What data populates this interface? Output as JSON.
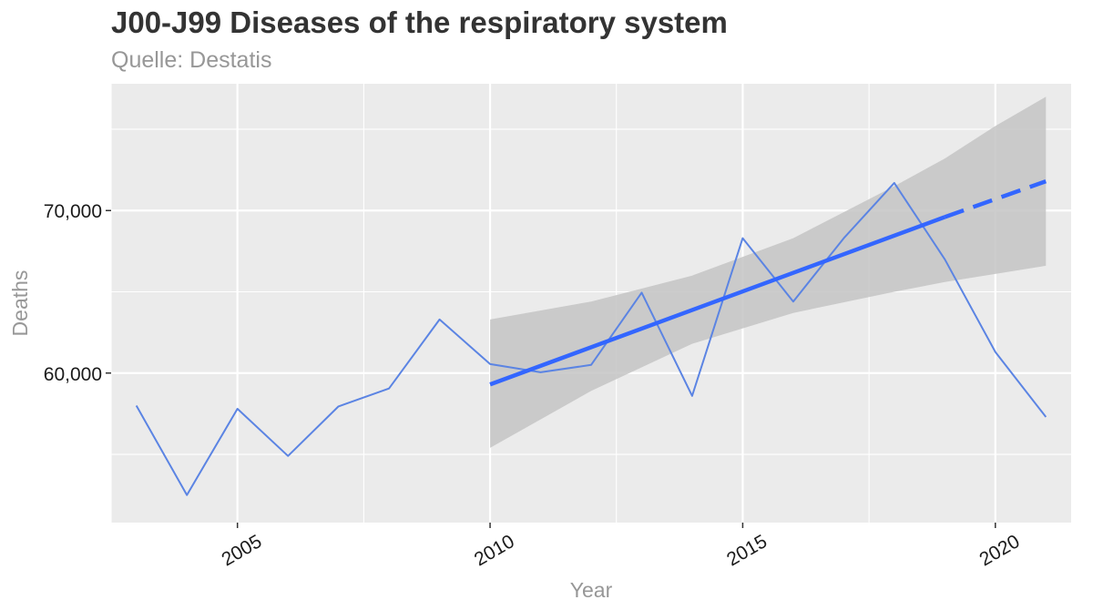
{
  "chart_data": {
    "type": "line",
    "title": "J00-J99 Diseases of the respiratory system",
    "subtitle": "Quelle: Destatis",
    "xlabel": "Year",
    "ylabel": "Deaths",
    "xlim": [
      2002.5,
      2021.5
    ],
    "ylim": [
      50800,
      77800
    ],
    "x_major_ticks": [
      2005,
      2010,
      2015,
      2020
    ],
    "x_minor_ticks": [
      2002.5,
      2007.5,
      2012.5,
      2017.5
    ],
    "y_major_ticks": [
      60000,
      70000
    ],
    "y_minor_ticks": [
      55000,
      65000,
      75000
    ],
    "x_tick_labels": [
      "2005",
      "2010",
      "2015",
      "2020"
    ],
    "y_tick_labels": [
      "60,000",
      "70,000"
    ],
    "grid": true,
    "colors": {
      "panel": "#ebebeb",
      "grid": "#ffffff",
      "series": "#5b84e3",
      "trend": "#3366ff",
      "ribbon": "#c4c4c4"
    },
    "series": [
      {
        "name": "Deaths",
        "x": [
          2003,
          2004,
          2005,
          2006,
          2007,
          2008,
          2009,
          2010,
          2011,
          2012,
          2013,
          2014,
          2015,
          2016,
          2017,
          2018,
          2019,
          2020,
          2021
        ],
        "values": [
          58000,
          52500,
          57800,
          54900,
          57950,
          59050,
          63300,
          60550,
          60050,
          60500,
          64950,
          58600,
          68300,
          64400,
          68300,
          71700,
          67000,
          61300,
          57300
        ]
      }
    ],
    "trend": {
      "method": "linear fit 2010-2019, dashed extrapolation to 2021",
      "x_start": 2010,
      "y_start": 59300,
      "x_solid_end": 2019,
      "y_solid_end": 69600,
      "x_end": 2021,
      "y_end": 71800,
      "confidence_band": [
        {
          "x": 2010,
          "lower": 55400,
          "upper": 63300
        },
        {
          "x": 2012,
          "lower": 58900,
          "upper": 64400
        },
        {
          "x": 2014,
          "lower": 61800,
          "upper": 66000
        },
        {
          "x": 2016,
          "lower": 63700,
          "upper": 68300
        },
        {
          "x": 2018,
          "lower": 65000,
          "upper": 71500
        },
        {
          "x": 2019,
          "lower": 65600,
          "upper": 73200
        },
        {
          "x": 2020,
          "lower": 66100,
          "upper": 75200
        },
        {
          "x": 2021,
          "lower": 66600,
          "upper": 77000
        }
      ]
    }
  }
}
